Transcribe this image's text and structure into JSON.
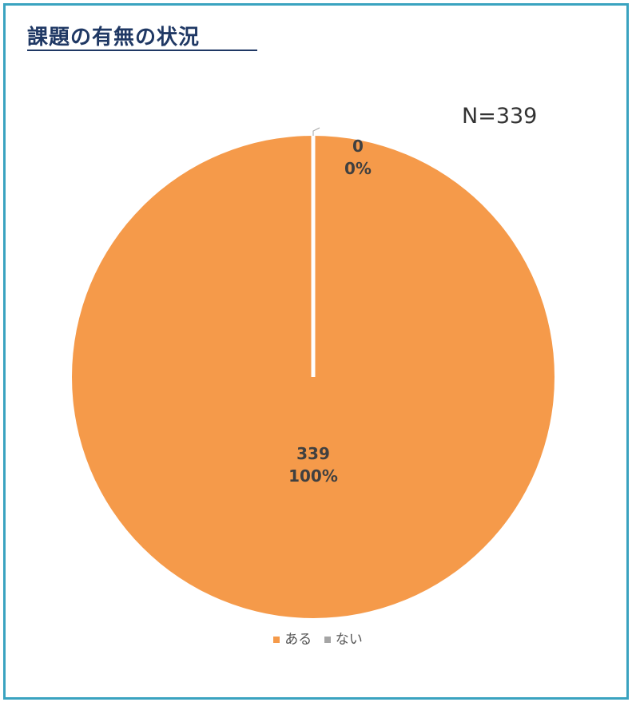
{
  "title": "課題の有無の状況",
  "n_label": "N=339",
  "colors": {
    "frame": "#3aa3c0",
    "title": "#1f3864",
    "slice_aru": "#f59a4a",
    "slice_nai": "#a5a5a5"
  },
  "chart_data": {
    "type": "pie",
    "title": "課題の有無の状況",
    "categories": [
      "ある",
      "ない"
    ],
    "values": [
      339,
      0
    ],
    "percent_labels": [
      "100%",
      "0%"
    ],
    "value_labels": [
      "339",
      "0"
    ],
    "legend_position": "bottom",
    "total_label": "N=339"
  }
}
